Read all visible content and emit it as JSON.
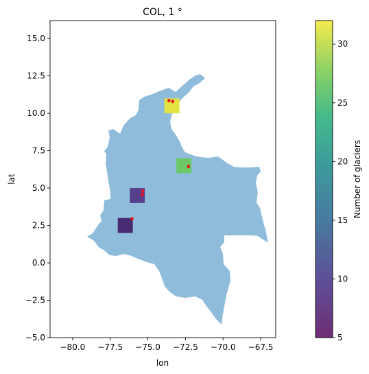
{
  "title": "COL, 1 °",
  "xlabel": "lon",
  "ylabel": "lat",
  "colorbar_label": "Number of glaciers",
  "colors": {
    "land": "#8fbcdb",
    "glacier_outline": "#e8151b",
    "axis": "#000000"
  },
  "chart_data": {
    "type": "heatmap",
    "title": "COL, 1 °",
    "xlabel": "lon",
    "ylabel": "lat",
    "xlim": [
      -81.5,
      -66.5
    ],
    "ylim": [
      -5,
      16.2
    ],
    "xticks": [
      -80.0,
      -77.5,
      -75.0,
      -72.5,
      -70.0,
      -67.5
    ],
    "xtick_labels": [
      "−80.0",
      "−77.5",
      "−75.0",
      "−72.5",
      "−70.0",
      "−67.5"
    ],
    "yticks": [
      -5.0,
      -2.5,
      0.0,
      2.5,
      5.0,
      7.5,
      10.0,
      12.5,
      15.0
    ],
    "ytick_labels": [
      "−5.0",
      "−2.5",
      "0.0",
      "2.5",
      "5.0",
      "7.5",
      "10.0",
      "12.5",
      "15.0"
    ],
    "cells": [
      {
        "lon_min": -73.9,
        "lon_max": -72.9,
        "lat_min": 10.0,
        "lat_max": 11.0,
        "count": 32,
        "color": "#e3e344"
      },
      {
        "lon_min": -73.1,
        "lon_max": -72.1,
        "lat_min": 6.0,
        "lat_max": 7.0,
        "count": 26,
        "color": "#6cc866"
      },
      {
        "lon_min": -76.2,
        "lon_max": -75.2,
        "lat_min": 4.0,
        "lat_max": 5.0,
        "count": 10,
        "color": "#56408e"
      },
      {
        "lon_min": -77.0,
        "lon_max": -76.0,
        "lat_min": 2.0,
        "lat_max": 3.0,
        "count": 6,
        "color": "#482a72"
      }
    ],
    "glaciers": [
      {
        "lon": -73.6,
        "lat": 10.85
      },
      {
        "lon": -73.35,
        "lat": 10.8
      },
      {
        "lon": -72.3,
        "lat": 6.45
      },
      {
        "lon": -75.33,
        "lat": 4.8
      },
      {
        "lon": -75.38,
        "lat": 4.55
      },
      {
        "lon": -76.05,
        "lat": 2.95
      }
    ],
    "colorbar": {
      "min": 5,
      "max": 32,
      "ticks": [
        5,
        10,
        15,
        20,
        25,
        30
      ],
      "label": "Number of glaciers",
      "colormap": "viridis",
      "alpha": 0.8
    }
  }
}
